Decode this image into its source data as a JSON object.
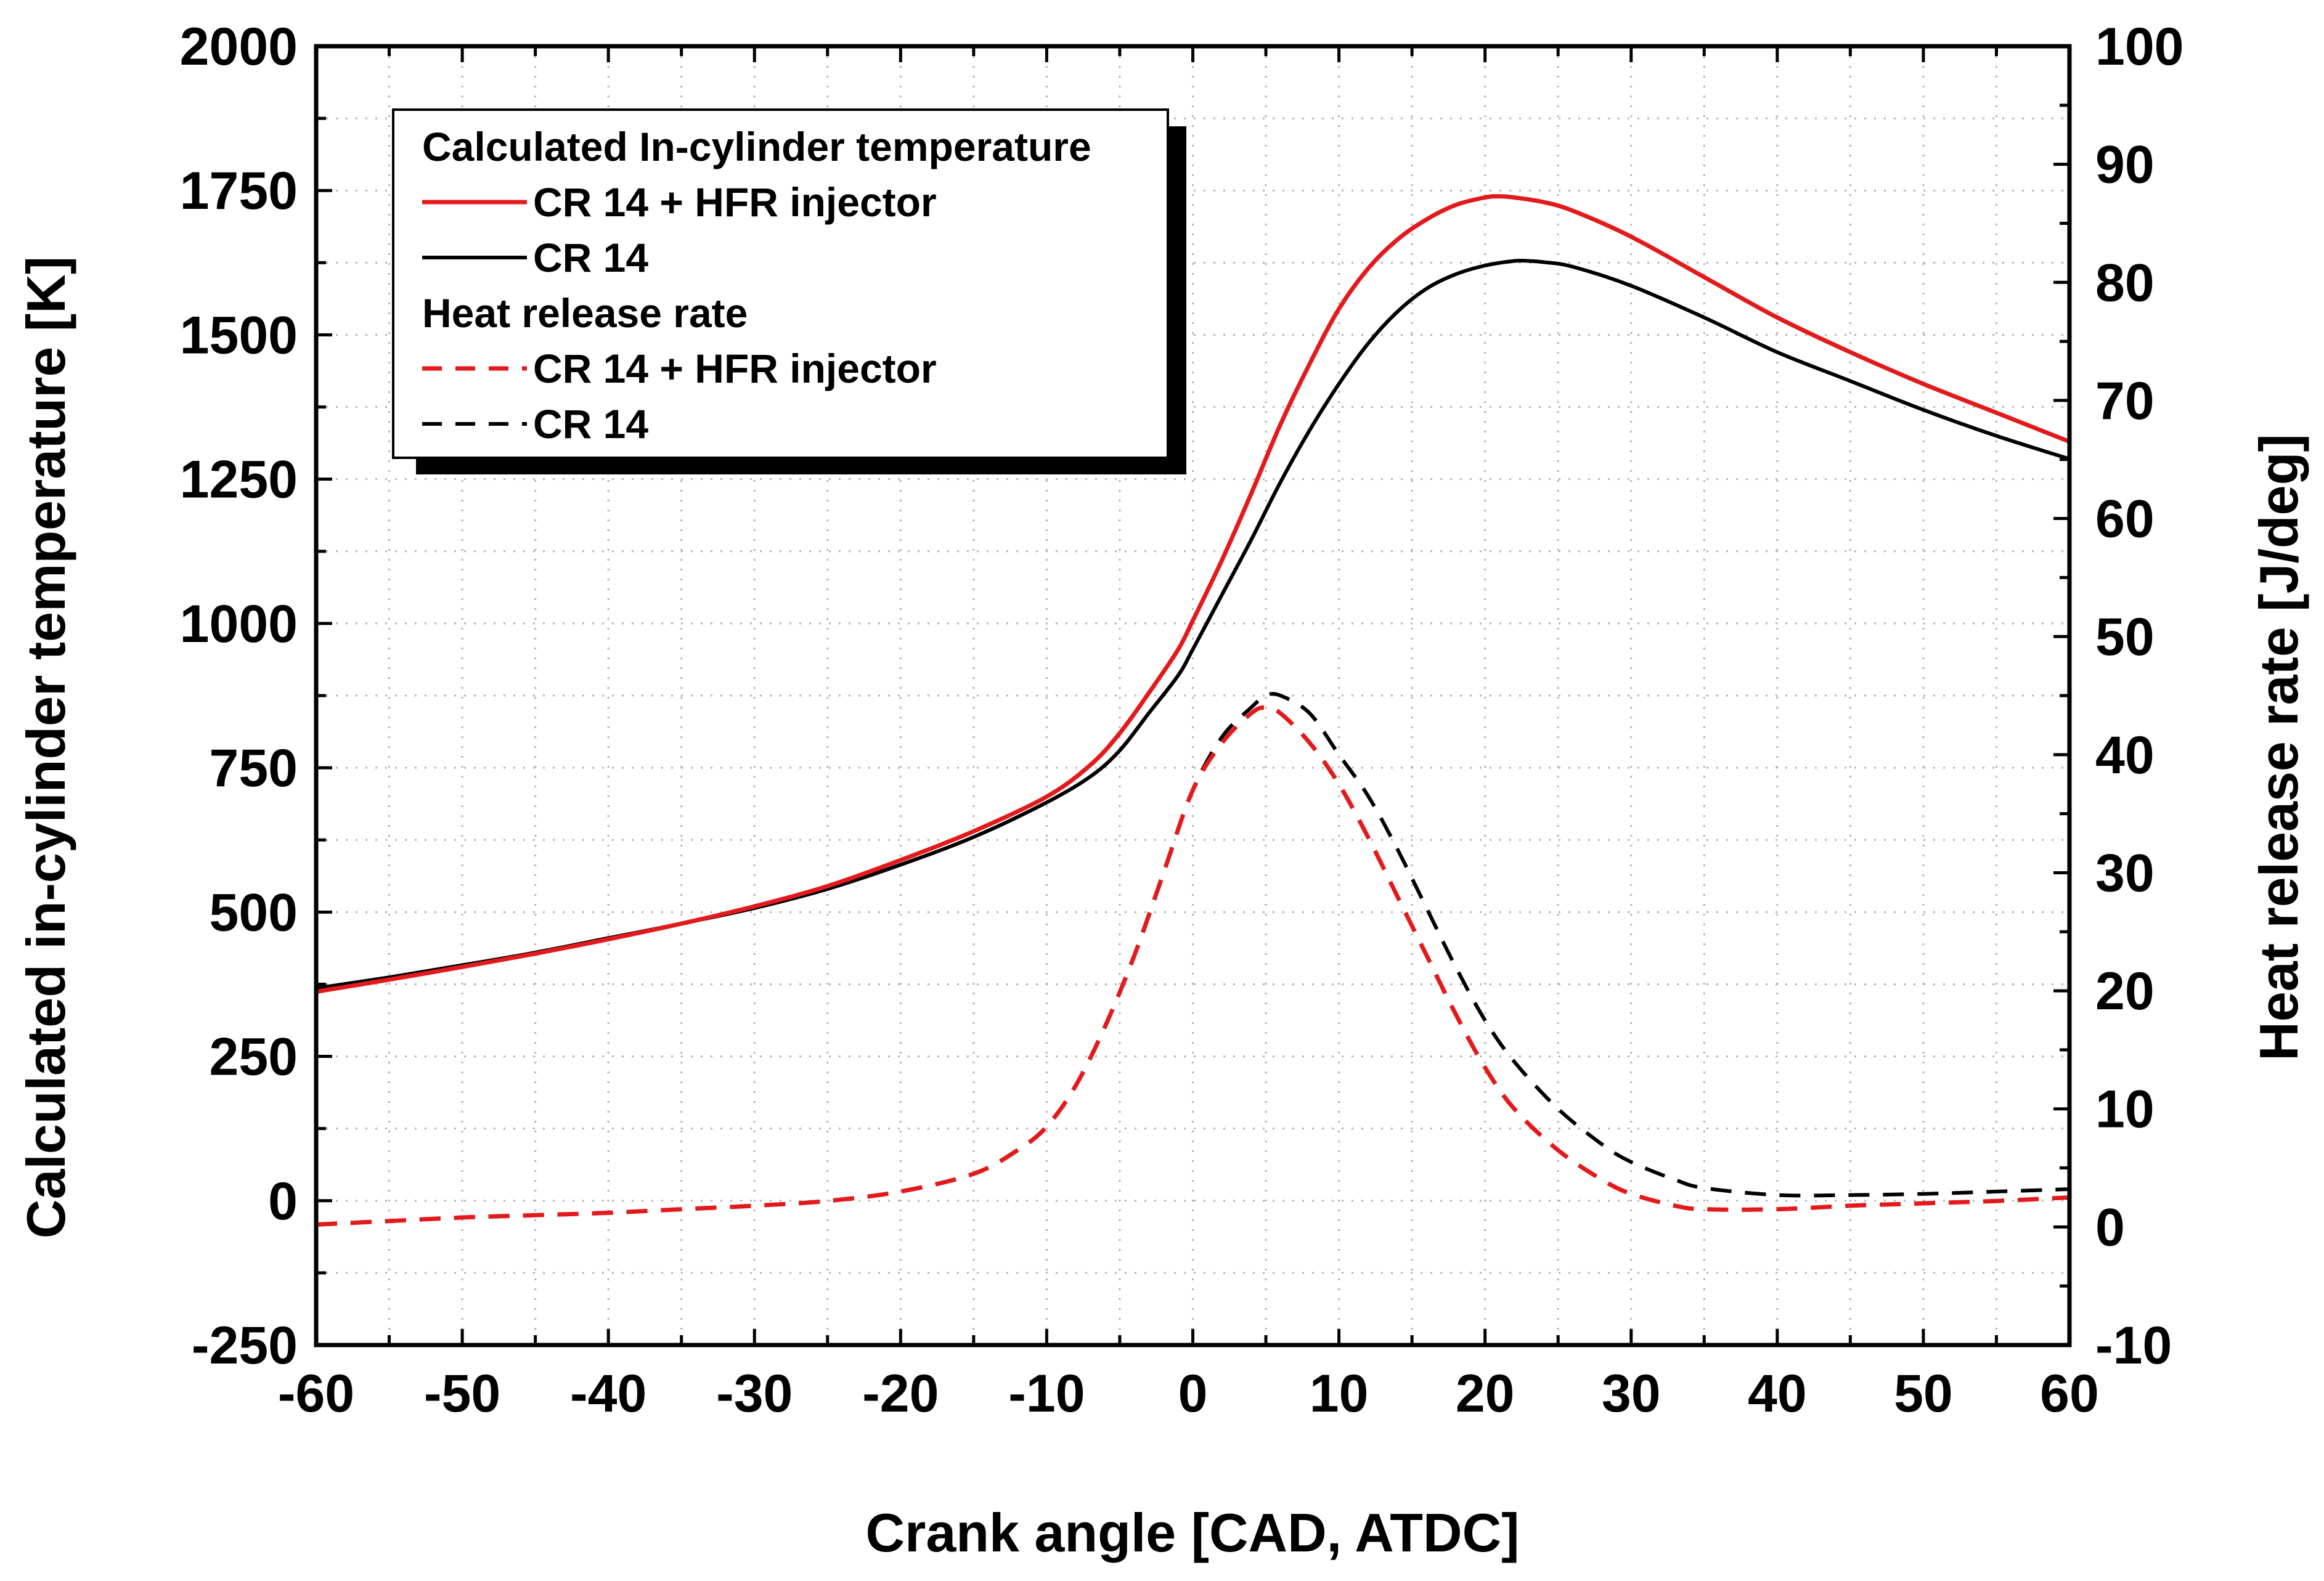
{
  "chart_data": {
    "type": "line",
    "xlabel": "Crank angle [CAD, ATDC]",
    "ylabel_left": "Calculated in-cylinder temperature [K]",
    "ylabel_right": "Heat release rate [J/deg]",
    "xlim": [
      -60,
      60
    ],
    "ylim_left": [
      -250,
      2000
    ],
    "ylim_right": [
      -10,
      100
    ],
    "x_ticks": [
      -60,
      -50,
      -40,
      -30,
      -20,
      -10,
      0,
      10,
      20,
      30,
      40,
      50,
      60
    ],
    "y_left_ticks": [
      -250,
      0,
      250,
      500,
      750,
      1000,
      1250,
      1500,
      1750,
      2000
    ],
    "y_right_ticks": [
      -10,
      0,
      10,
      20,
      30,
      40,
      50,
      60,
      70,
      80,
      90,
      100
    ],
    "grid": true,
    "legend": {
      "position": "top-left",
      "groups": [
        {
          "title": "Calculated In-cylinder temperature",
          "entries": [
            {
              "label": "CR 14 + HFR injector",
              "color": "#e31a1c",
              "dash": "solid"
            },
            {
              "label": "CR 14",
              "color": "#000000",
              "dash": "solid"
            }
          ]
        },
        {
          "title": "Heat release rate",
          "entries": [
            {
              "label": "CR 14 + HFR injector",
              "color": "#e31a1c",
              "dash": "dashed"
            },
            {
              "label": "CR 14",
              "color": "#000000",
              "dash": "dashed"
            }
          ]
        }
      ]
    },
    "series": [
      {
        "name": "Calculated In-cylinder temperature - CR 14 + HFR injector",
        "axis": "left",
        "color": "#e31a1c",
        "dash": "solid",
        "x": [
          -60,
          -55,
          -50,
          -45,
          -40,
          -35,
          -30,
          -25,
          -20,
          -15,
          -10,
          -7,
          -5,
          -3,
          -1,
          0,
          2,
          4,
          6,
          8,
          10,
          12,
          14,
          16,
          18,
          20,
          21,
          22,
          24,
          26,
          30,
          35,
          40,
          45,
          50,
          55,
          60
        ],
        "y": [
          362,
          383,
          405,
          428,
          453,
          480,
          510,
          545,
          590,
          640,
          700,
          755,
          810,
          880,
          955,
          1005,
          1110,
          1225,
          1345,
          1450,
          1545,
          1615,
          1665,
          1700,
          1725,
          1738,
          1740,
          1738,
          1730,
          1715,
          1670,
          1600,
          1530,
          1470,
          1415,
          1365,
          1315
        ]
      },
      {
        "name": "Calculated In-cylinder temperature - CR 14",
        "axis": "left",
        "color": "#000000",
        "dash": "solid",
        "x": [
          -60,
          -55,
          -50,
          -45,
          -40,
          -35,
          -30,
          -25,
          -20,
          -15,
          -10,
          -7,
          -5,
          -3,
          -1,
          0,
          2,
          4,
          6,
          8,
          10,
          12,
          14,
          16,
          18,
          20,
          22,
          23,
          24,
          26,
          30,
          35,
          40,
          45,
          50,
          55,
          60
        ],
        "y": [
          368,
          387,
          408,
          430,
          455,
          480,
          507,
          540,
          582,
          630,
          690,
          735,
          780,
          845,
          910,
          955,
          1050,
          1145,
          1245,
          1335,
          1415,
          1485,
          1540,
          1580,
          1605,
          1620,
          1628,
          1628,
          1626,
          1618,
          1585,
          1530,
          1470,
          1420,
          1370,
          1325,
          1285
        ]
      },
      {
        "name": "Heat release rate - CR 14 + HFR injector",
        "axis": "right",
        "color": "#e31a1c",
        "dash": "dashed",
        "x": [
          -60,
          -55,
          -50,
          -45,
          -40,
          -35,
          -30,
          -25,
          -20,
          -15,
          -12,
          -10,
          -8,
          -6,
          -4,
          -2,
          0,
          2,
          4,
          5,
          6,
          8,
          10,
          12,
          14,
          16,
          18,
          20,
          22,
          25,
          28,
          30,
          33,
          35,
          40,
          45,
          50,
          55,
          60
        ],
        "y": [
          0.2,
          0.5,
          0.8,
          1.0,
          1.2,
          1.5,
          1.8,
          2.2,
          3.0,
          4.5,
          6.5,
          8.5,
          12,
          17,
          23,
          30,
          37,
          41,
          43.5,
          44,
          43.5,
          41,
          37.5,
          33,
          28,
          23,
          18,
          13.5,
          10,
          6.5,
          4.0,
          2.8,
          1.8,
          1.5,
          1.5,
          1.8,
          2.0,
          2.2,
          2.5
        ]
      },
      {
        "name": "Heat release rate - CR 14",
        "axis": "right",
        "color": "#000000",
        "dash": "dashed",
        "x": [
          -60,
          -55,
          -50,
          -45,
          -40,
          -35,
          -30,
          -25,
          -20,
          -15,
          -12,
          -10,
          -8,
          -6,
          -4,
          -2,
          0,
          2,
          4,
          5,
          6,
          8,
          10,
          12,
          14,
          16,
          18,
          20,
          22,
          25,
          28,
          30,
          33,
          35,
          40,
          45,
          50,
          55,
          60
        ],
        "y": [
          0.2,
          0.5,
          0.8,
          1.0,
          1.2,
          1.5,
          1.8,
          2.2,
          3.0,
          4.5,
          6.5,
          8.5,
          12,
          17,
          23,
          30,
          37,
          41.5,
          44,
          45,
          45,
          43.5,
          40,
          36.5,
          32,
          27,
          22,
          17.5,
          14,
          10,
          7,
          5.5,
          4,
          3.3,
          2.7,
          2.7,
          2.8,
          3.0,
          3.2
        ]
      }
    ]
  }
}
